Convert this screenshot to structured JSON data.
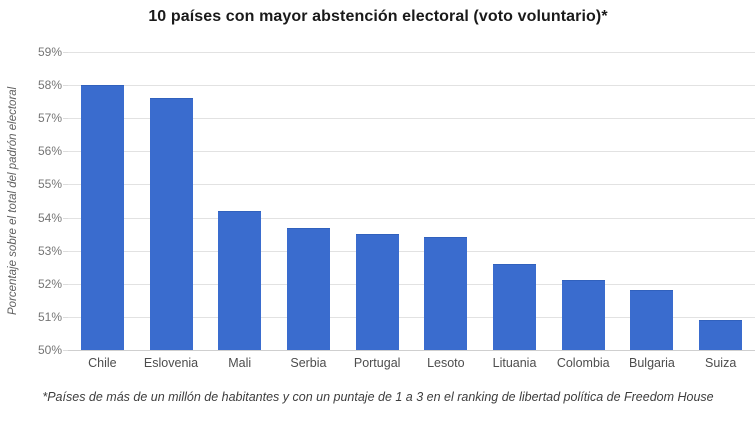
{
  "chart_data": {
    "type": "bar",
    "title": "10 países con mayor abstención electoral (voto voluntario)*",
    "ylabel": "Porcentaje sobre el total del padrón electoral",
    "xlabel": "",
    "footnote": "*Países de más de un millón de habitantes y con un puntaje de 1 a 3 en el ranking de libertad política de Freedom House",
    "categories": [
      "Chile",
      "Eslovenia",
      "Mali",
      "Serbia",
      "Portugal",
      "Lesoto",
      "Lituania",
      "Colombia",
      "Bulgaria",
      "Suiza"
    ],
    "values": [
      58.0,
      57.6,
      54.2,
      53.7,
      53.5,
      53.4,
      52.6,
      52.1,
      51.8,
      50.9
    ],
    "ylim": [
      50,
      59
    ],
    "ytick_step": 1,
    "ytick_suffix": "%",
    "grid": true,
    "legend": "none",
    "colors": {
      "bar": "#3a6cce",
      "bar_edge": "#3161bd",
      "grid": "#e2e2e2",
      "baseline": "#cfcfcf",
      "title_text": "#1a1a1a",
      "ytick_text": "#757575",
      "xtick_text": "#4d4d4d",
      "ylabel_text": "#616161",
      "footnote_text": "#3d3d3d",
      "background": "#ffffff"
    }
  }
}
